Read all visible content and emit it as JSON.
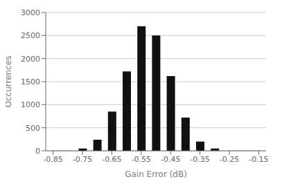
{
  "chart_data": {
    "type": "bar",
    "x": [
      -0.75,
      -0.7,
      -0.65,
      -0.6,
      -0.55,
      -0.5,
      -0.45,
      -0.4,
      -0.35,
      -0.3
    ],
    "values": [
      50,
      240,
      850,
      1720,
      2700,
      2500,
      1620,
      720,
      200,
      50
    ],
    "color": "#111111",
    "xlabel": "Gain Error (dB)",
    "ylabel": "Occurrences",
    "xlim": [
      -0.875,
      -0.125
    ],
    "ylim": [
      0,
      3000
    ],
    "xticks": [
      -0.85,
      -0.75,
      -0.65,
      -0.55,
      -0.45,
      -0.35,
      -0.25,
      -0.15
    ],
    "yticks": [
      0,
      500,
      1000,
      1500,
      2000,
      2500,
      3000
    ],
    "grid": true
  }
}
